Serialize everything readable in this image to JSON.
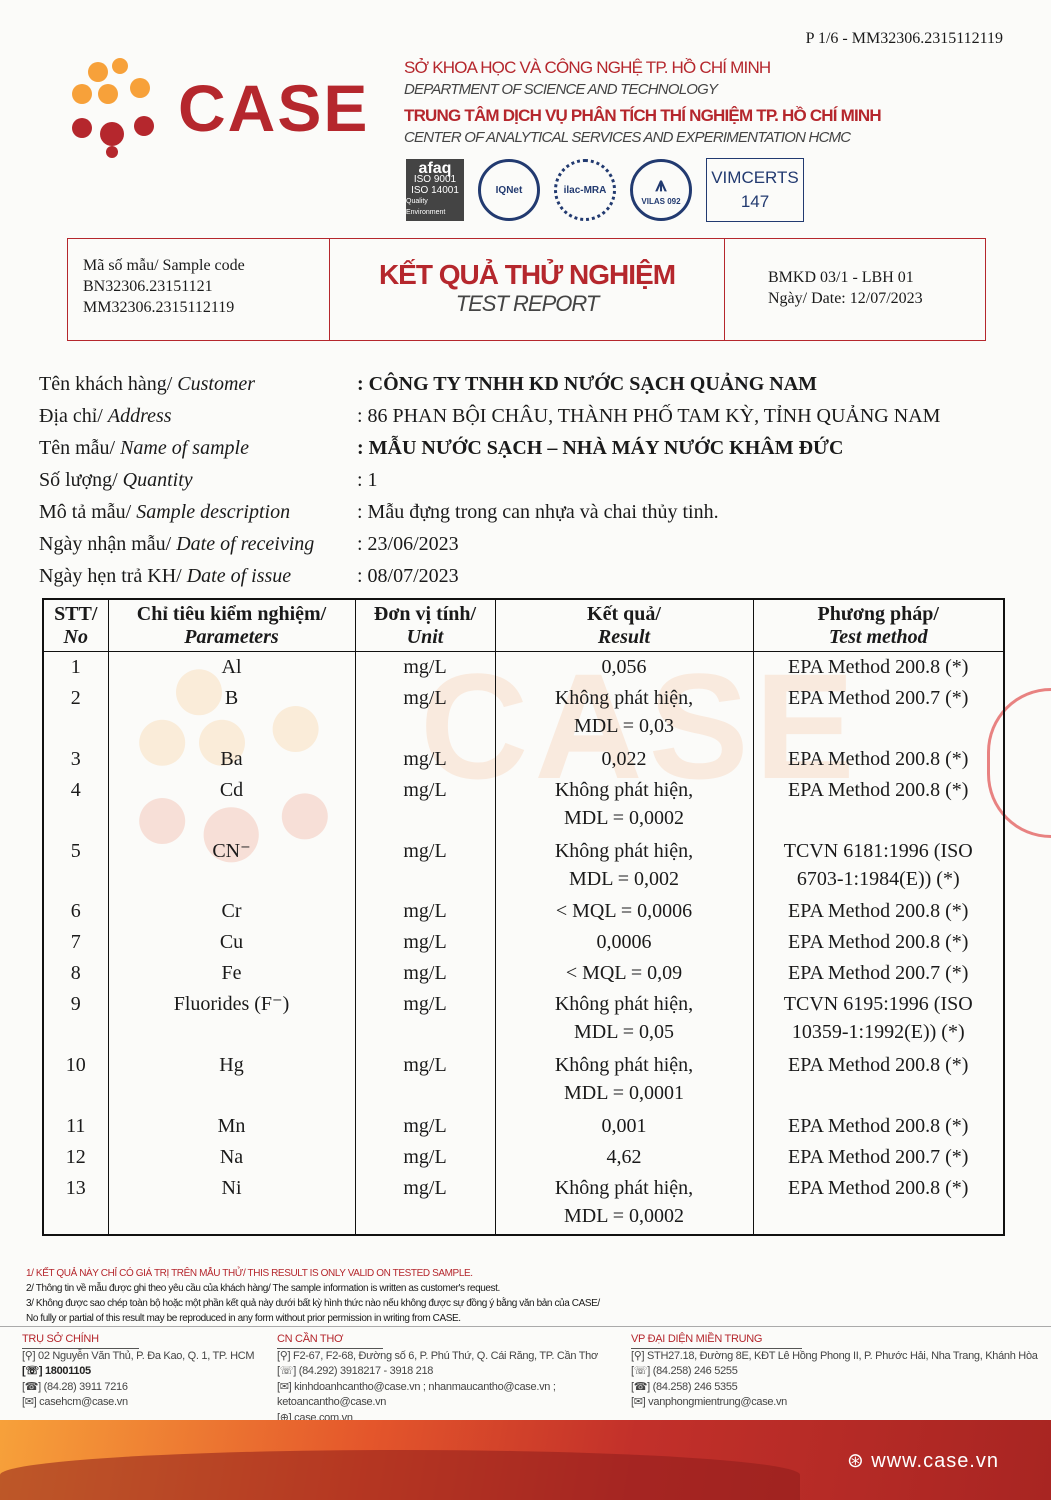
{
  "page_number": "P 1/6 - MM32306.2315112119",
  "logo": {
    "text": "CASE",
    "colors": {
      "orange": "#f7a13a",
      "red": "#b5272d"
    }
  },
  "org": {
    "line1": "SỞ KHOA HỌC VÀ CÔNG NGHỆ TP. HỒ CHÍ MINH",
    "line1_en": "DEPARTMENT OF SCIENCE AND TECHNOLOGY",
    "line2": "TRUNG TÂM DỊCH VỤ PHÂN TÍCH THÍ NGHIỆM TP. HỒ CHÍ MINH",
    "line2_en": "CENTER OF ANALYTICAL SERVICES AND EXPERIMENTATION HCMC"
  },
  "certs": {
    "afaq": "afaq",
    "iso1": "ISO 9001",
    "iso2": "ISO 14001",
    "afaq_sub": "Quality Environment",
    "iqnet": "IQNet",
    "ilac": "ilac-MRA",
    "vilas": "VILAS 092",
    "vimcerts": "VIMCERTS",
    "vimcerts_no": "147"
  },
  "header": {
    "sample_code_label": "Mã số mẫu/ Sample code",
    "code1": "BN32306.23151121",
    "code2": "MM32306.2315112119",
    "title": "KẾT QUẢ THỬ NGHIỆM",
    "subtitle": "TEST REPORT",
    "form": "BMKD 03/1 - LBH 01",
    "date": "Ngày/ Date: 12/07/2023"
  },
  "info": [
    {
      "vn": "Tên khách hàng/ ",
      "en": "Customer",
      "value": ": CÔNG TY TNHH KD NƯỚC SẠCH QUẢNG NAM",
      "bold": true
    },
    {
      "vn": "Địa chỉ/ ",
      "en": "Address",
      "value": ": 86 PHAN BỘI CHÂU, THÀNH PHỐ TAM KỲ, TỈNH QUẢNG NAM",
      "bold": false
    },
    {
      "vn": "Tên mẫu/ ",
      "en": "Name of sample",
      "value": ": MẪU NƯỚC SẠCH – NHÀ MÁY NƯỚC KHÂM ĐỨC",
      "bold": true
    },
    {
      "vn": "Số lượng/ ",
      "en": "Quantity",
      "value": ": 1",
      "bold": false
    },
    {
      "vn": "Mô tả mẫu/ ",
      "en": "Sample description",
      "value": ": Mẫu đựng trong can nhựa và chai thủy tinh.",
      "bold": false
    },
    {
      "vn": "Ngày nhận mẫu/ ",
      "en": "Date of receiving",
      "value": ": 23/06/2023",
      "bold": false
    },
    {
      "vn": "Ngày hẹn trả KH/ ",
      "en": "Date of issue",
      "value": ": 08/07/2023",
      "bold": false
    }
  ],
  "table": {
    "headers": [
      {
        "vn": "STT/",
        "en": "No"
      },
      {
        "vn": "Chỉ tiêu kiểm nghiệm/",
        "en": "Parameters"
      },
      {
        "vn": "Đơn vị tính/",
        "en": "Unit"
      },
      {
        "vn": "Kết quả/",
        "en": "Result"
      },
      {
        "vn": "Phương pháp/",
        "en": "Test method"
      }
    ],
    "rows": [
      {
        "no": "1",
        "param": "Al",
        "unit": "mg/L",
        "result": [
          "0,056"
        ],
        "method": [
          "EPA Method 200.8 (*)"
        ]
      },
      {
        "no": "2",
        "param": "B",
        "unit": "mg/L",
        "result": [
          "Không phát hiện,",
          "MDL = 0,03"
        ],
        "method": [
          "EPA Method 200.7 (*)"
        ]
      },
      {
        "no": "3",
        "param": "Ba",
        "unit": "mg/L",
        "result": [
          "0,022"
        ],
        "method": [
          "EPA Method 200.8 (*)"
        ]
      },
      {
        "no": "4",
        "param": "Cd",
        "unit": "mg/L",
        "result": [
          "Không phát hiện,",
          "MDL = 0,0002"
        ],
        "method": [
          "EPA Method 200.8 (*)"
        ]
      },
      {
        "no": "5",
        "param": "CN⁻",
        "unit": "mg/L",
        "result": [
          "Không phát hiện,",
          "MDL = 0,002"
        ],
        "method": [
          "TCVN 6181:1996 (ISO",
          "6703-1:1984(E)) (*)"
        ]
      },
      {
        "no": "6",
        "param": "Cr",
        "unit": "mg/L",
        "result": [
          "< MQL = 0,0006"
        ],
        "method": [
          "EPA Method 200.8 (*)"
        ]
      },
      {
        "no": "7",
        "param": "Cu",
        "unit": "mg/L",
        "result": [
          "0,0006"
        ],
        "method": [
          "EPA Method 200.8 (*)"
        ]
      },
      {
        "no": "8",
        "param": "Fe",
        "unit": "mg/L",
        "result": [
          "< MQL = 0,09"
        ],
        "method": [
          "EPA Method 200.7 (*)"
        ]
      },
      {
        "no": "9",
        "param": "Fluorides (F⁻)",
        "unit": "mg/L",
        "result": [
          "Không phát hiện,",
          "MDL = 0,05"
        ],
        "method": [
          "TCVN 6195:1996 (ISO",
          "10359-1:1992(E)) (*)"
        ]
      },
      {
        "no": "10",
        "param": "Hg",
        "unit": "mg/L",
        "result": [
          "Không phát hiện,",
          "MDL = 0,0001"
        ],
        "method": [
          "EPA Method 200.8 (*)"
        ]
      },
      {
        "no": "11",
        "param": "Mn",
        "unit": "mg/L",
        "result": [
          "0,001"
        ],
        "method": [
          "EPA Method 200.8 (*)"
        ]
      },
      {
        "no": "12",
        "param": "Na",
        "unit": "mg/L",
        "result": [
          "4,62"
        ],
        "method": [
          "EPA Method 200.7 (*)"
        ]
      },
      {
        "no": "13",
        "param": "Ni",
        "unit": "mg/L",
        "result": [
          "Không phát hiện,",
          "MDL = 0,0002"
        ],
        "method": [
          "EPA Method 200.8 (*)"
        ]
      }
    ]
  },
  "watermark": "CASE",
  "notes": [
    "1/ KẾT QUẢ NÀY CHỈ CÓ GIÁ TRỊ TRÊN MẪU THỬ/ THIS RESULT IS ONLY VALID ON TESTED SAMPLE.",
    "2/ Thông tin về mẫu được ghi theo yêu cầu của khách hàng/ The sample information is written as customer's request.",
    "3/ Không được sao chép toàn bộ hoặc một phần kết quả này dưới bất kỳ hình thức nào nếu không được sự đồng ý bằng văn bản của CASE/",
    "No fully or partial of this result may be reproduced in any form without prior permission in writing from CASE."
  ],
  "footer": [
    {
      "title": "TRỤ SỞ CHÍNH",
      "lines": [
        "[⚲] 02 Nguyễn Văn Thủ, P. Đa Kao, Q. 1, TP. HCM",
        "[☏] 18001105",
        "[☎] (84.28) 3911 7216",
        "[✉] casehcm@case.vn"
      ]
    },
    {
      "title": "CN CẦN THƠ",
      "lines": [
        "[⚲] F2-67, F2-68, Đường số 6, P. Phú Thứ, Q. Cái Răng, TP. Cần Thơ",
        "[☏] (84.292) 3918217 - 3918 218",
        "[✉] kinhdoanhcantho@case.vn ; nhanmaucantho@case.vn ;",
        "      ketoancantho@case.vn",
        "[⊕] case.com.vn"
      ]
    },
    {
      "title": "VP ĐẠI DIỆN MIỀN TRUNG",
      "lines": [
        "[⚲] STH27.18, Đường 8E, KĐT Lê Hồng Phong II, P. Phước Hải, Nha Trang, Khánh Hòa",
        "[☏] (84.258) 246 5255",
        "[☎] (84.258) 246 5355",
        "[✉] vanphongmientrung@case.vn"
      ]
    }
  ],
  "website": "www.case.vn"
}
